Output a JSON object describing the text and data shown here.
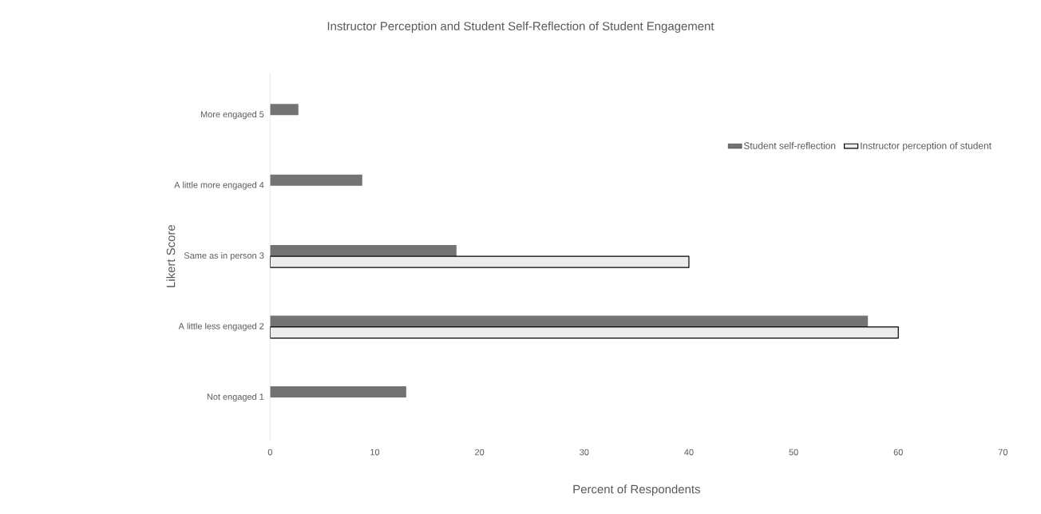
{
  "chart_data": {
    "type": "bar",
    "orientation": "horizontal",
    "title": "Instructor Perception and Student Self-Reflection of Student Engagement",
    "xlabel": "Percent of Respondents",
    "ylabel": "Likert Score",
    "categories": [
      "More engaged  5",
      "A little more engaged  4",
      "Same as in person  3",
      "A little less engaged  2",
      "Not engaged  1"
    ],
    "series": [
      {
        "name": "Student self-reflection",
        "color": "#737373",
        "values": [
          2.7,
          8.8,
          17.8,
          57.1,
          13.0
        ]
      },
      {
        "name": "Instructor perception of student",
        "color": "#ececec",
        "values": [
          null,
          null,
          40,
          60,
          null
        ]
      }
    ],
    "xlim": [
      0,
      70
    ],
    "xticks": [
      0,
      10,
      20,
      30,
      40,
      50,
      60,
      70
    ],
    "grid": false,
    "legend": "top right"
  }
}
